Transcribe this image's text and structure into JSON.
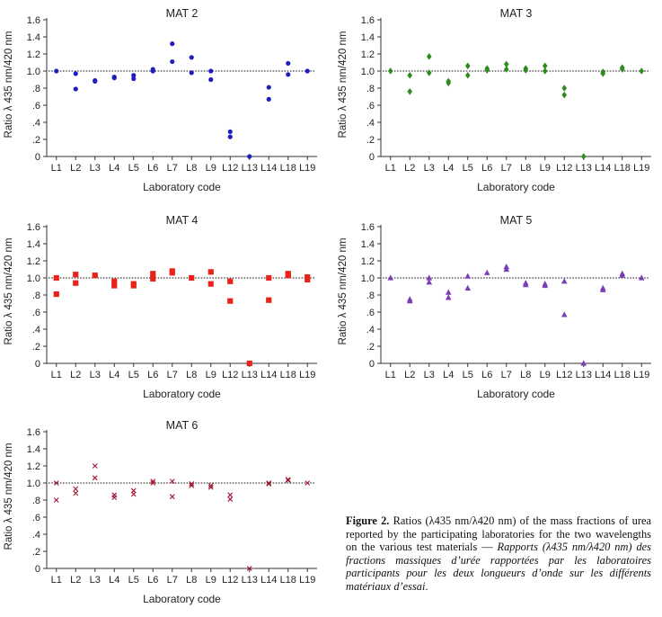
{
  "chart_data": [
    {
      "type": "scatter",
      "title": "MAT 2",
      "xlabel": "Laboratory code",
      "ylabel": "Ratio λ 435 nm/420 nm",
      "categories": [
        "L1",
        "L2",
        "L3",
        "L4",
        "L5",
        "L6",
        "L7",
        "L8",
        "L9",
        "L12",
        "L13",
        "L14",
        "L18",
        "L19"
      ],
      "ylim": [
        0,
        1.6
      ],
      "yticks": [
        "0",
        ".2",
        ".4",
        ".6",
        ".8",
        "1.0",
        "1.2",
        "1.4",
        "1.6"
      ],
      "reference_line": 1.0,
      "marker": "circle",
      "color": "#1f1fbf",
      "points": [
        [
          "L1",
          1.0
        ],
        [
          "L2",
          0.97
        ],
        [
          "L2",
          0.79
        ],
        [
          "L3",
          0.89
        ],
        [
          "L3",
          0.88
        ],
        [
          "L4",
          0.93
        ],
        [
          "L4",
          0.92
        ],
        [
          "L5",
          0.95
        ],
        [
          "L5",
          0.91
        ],
        [
          "L6",
          1.02
        ],
        [
          "L6",
          1.0
        ],
        [
          "L7",
          1.32
        ],
        [
          "L7",
          1.11
        ],
        [
          "L8",
          1.16
        ],
        [
          "L8",
          0.98
        ],
        [
          "L9",
          1.0
        ],
        [
          "L9",
          0.9
        ],
        [
          "L12",
          0.29
        ],
        [
          "L12",
          0.23
        ],
        [
          "L13",
          0.0
        ],
        [
          "L14",
          0.81
        ],
        [
          "L14",
          0.67
        ],
        [
          "L18",
          1.09
        ],
        [
          "L18",
          0.96
        ],
        [
          "L19",
          1.0
        ]
      ]
    },
    {
      "type": "scatter",
      "title": "MAT 3",
      "xlabel": "Laboratory code",
      "ylabel": "Ratio λ 435 nm/420 nm",
      "categories": [
        "L1",
        "L2",
        "L3",
        "L4",
        "L5",
        "L6",
        "L7",
        "L8",
        "L9",
        "L12",
        "L13",
        "L14",
        "L18",
        "L19"
      ],
      "ylim": [
        0,
        1.6
      ],
      "yticks": [
        "0",
        ".2",
        ".4",
        ".6",
        ".8",
        "1.0",
        "1.2",
        "1.4",
        "1.6"
      ],
      "reference_line": 1.0,
      "marker": "diamond",
      "color": "#2e8b1e",
      "points": [
        [
          "L1",
          1.0
        ],
        [
          "L2",
          0.95
        ],
        [
          "L2",
          0.76
        ],
        [
          "L3",
          1.17
        ],
        [
          "L3",
          0.98
        ],
        [
          "L4",
          0.88
        ],
        [
          "L4",
          0.86
        ],
        [
          "L5",
          1.06
        ],
        [
          "L5",
          0.95
        ],
        [
          "L6",
          1.03
        ],
        [
          "L6",
          1.01
        ],
        [
          "L7",
          1.08
        ],
        [
          "L7",
          1.02
        ],
        [
          "L8",
          1.03
        ],
        [
          "L8",
          1.01
        ],
        [
          "L9",
          1.06
        ],
        [
          "L9",
          1.0
        ],
        [
          "L12",
          0.8
        ],
        [
          "L12",
          0.72
        ],
        [
          "L13",
          0.0
        ],
        [
          "L14",
          0.99
        ],
        [
          "L14",
          0.97
        ],
        [
          "L18",
          1.04
        ],
        [
          "L18",
          1.02
        ],
        [
          "L19",
          1.0
        ]
      ]
    },
    {
      "type": "scatter",
      "title": "MAT 4",
      "xlabel": "Laboratory code",
      "ylabel": "Ratio λ 435 nm/420 nm",
      "categories": [
        "L1",
        "L2",
        "L3",
        "L4",
        "L5",
        "L6",
        "L7",
        "L8",
        "L9",
        "L12",
        "L13",
        "L14",
        "L18",
        "L19"
      ],
      "ylim": [
        0,
        1.6
      ],
      "yticks": [
        "0",
        ".2",
        ".4",
        ".6",
        ".8",
        "1.0",
        "1.2",
        "1.4",
        "1.6"
      ],
      "reference_line": 1.0,
      "marker": "square",
      "color": "#e8241a",
      "points": [
        [
          "L1",
          1.0
        ],
        [
          "L1",
          0.81
        ],
        [
          "L2",
          1.04
        ],
        [
          "L2",
          0.94
        ],
        [
          "L3",
          1.03
        ],
        [
          "L4",
          0.96
        ],
        [
          "L4",
          0.91
        ],
        [
          "L5",
          0.93
        ],
        [
          "L5",
          0.91
        ],
        [
          "L6",
          1.05
        ],
        [
          "L6",
          0.99
        ],
        [
          "L7",
          1.08
        ],
        [
          "L7",
          1.06
        ],
        [
          "L8",
          1.0
        ],
        [
          "L9",
          1.07
        ],
        [
          "L9",
          0.93
        ],
        [
          "L12",
          0.96
        ],
        [
          "L12",
          0.73
        ],
        [
          "L13",
          0.0
        ],
        [
          "L14",
          1.0
        ],
        [
          "L14",
          0.74
        ],
        [
          "L18",
          1.05
        ],
        [
          "L18",
          1.03
        ],
        [
          "L19",
          1.01
        ],
        [
          "L19",
          0.98
        ]
      ]
    },
    {
      "type": "scatter",
      "title": "MAT 5",
      "xlabel": "Laboratory code",
      "ylabel": "Ratio λ 435 nm/420 nm",
      "categories": [
        "L1",
        "L2",
        "L3",
        "L4",
        "L5",
        "L6",
        "L7",
        "L8",
        "L9",
        "L12",
        "L13",
        "L14",
        "L18",
        "L19"
      ],
      "ylim": [
        0,
        1.6
      ],
      "yticks": [
        "0",
        ".2",
        ".4",
        ".6",
        ".8",
        "1.0",
        "1.2",
        "1.4",
        "1.6"
      ],
      "reference_line": 1.0,
      "marker": "triangle",
      "color": "#7b3fb5",
      "points": [
        [
          "L1",
          1.0
        ],
        [
          "L2",
          0.75
        ],
        [
          "L2",
          0.73
        ],
        [
          "L3",
          1.0
        ],
        [
          "L3",
          0.95
        ],
        [
          "L4",
          0.83
        ],
        [
          "L4",
          0.77
        ],
        [
          "L5",
          1.02
        ],
        [
          "L5",
          0.88
        ],
        [
          "L6",
          1.06
        ],
        [
          "L7",
          1.13
        ],
        [
          "L7",
          1.1
        ],
        [
          "L8",
          0.94
        ],
        [
          "L8",
          0.92
        ],
        [
          "L9",
          0.93
        ],
        [
          "L9",
          0.91
        ],
        [
          "L12",
          0.96
        ],
        [
          "L12",
          0.57
        ],
        [
          "L13",
          0.0
        ],
        [
          "L14",
          0.88
        ],
        [
          "L14",
          0.86
        ],
        [
          "L18",
          1.05
        ],
        [
          "L18",
          1.03
        ],
        [
          "L19",
          1.0
        ]
      ]
    },
    {
      "type": "scatter",
      "title": "MAT 6",
      "xlabel": "Laboratory code",
      "ylabel": "Ratio λ 435 nm/420 nm",
      "categories": [
        "L1",
        "L2",
        "L3",
        "L4",
        "L5",
        "L6",
        "L7",
        "L8",
        "L9",
        "L12",
        "L13",
        "L14",
        "L18",
        "L19"
      ],
      "ylim": [
        0,
        1.6
      ],
      "yticks": [
        "0",
        ".2",
        ".4",
        ".6",
        ".8",
        "1.0",
        "1.2",
        "1.4",
        "1.6"
      ],
      "reference_line": 1.0,
      "marker": "x",
      "color": "#a0142e",
      "points": [
        [
          "L1",
          1.0
        ],
        [
          "L1",
          0.8
        ],
        [
          "L2",
          0.93
        ],
        [
          "L2",
          0.88
        ],
        [
          "L3",
          1.2
        ],
        [
          "L3",
          1.06
        ],
        [
          "L4",
          0.86
        ],
        [
          "L4",
          0.83
        ],
        [
          "L5",
          0.91
        ],
        [
          "L5",
          0.87
        ],
        [
          "L6",
          1.02
        ],
        [
          "L6",
          1.0
        ],
        [
          "L7",
          1.02
        ],
        [
          "L7",
          0.84
        ],
        [
          "L8",
          0.99
        ],
        [
          "L8",
          0.97
        ],
        [
          "L9",
          0.97
        ],
        [
          "L9",
          0.95
        ],
        [
          "L12",
          0.86
        ],
        [
          "L12",
          0.81
        ],
        [
          "L13",
          0.0
        ],
        [
          "L14",
          1.0
        ],
        [
          "L14",
          0.99
        ],
        [
          "L18",
          1.04
        ],
        [
          "L18",
          1.03
        ],
        [
          "L19",
          1.0
        ]
      ]
    }
  ],
  "caption": {
    "label": "Figure 2.",
    "text_en": " Ratios (λ435 nm/λ420 nm) of the mass fractions of urea reported by the participating laboratories for the two wavelengths on the various test materials — ",
    "text_fr": "Rapports (λ435 nm/λ420 nm) des fractions massiques d’urée rapportées par les laboratoires participants pour les deux longueurs d’onde sur les différents matériaux d’essai",
    "end": "."
  }
}
